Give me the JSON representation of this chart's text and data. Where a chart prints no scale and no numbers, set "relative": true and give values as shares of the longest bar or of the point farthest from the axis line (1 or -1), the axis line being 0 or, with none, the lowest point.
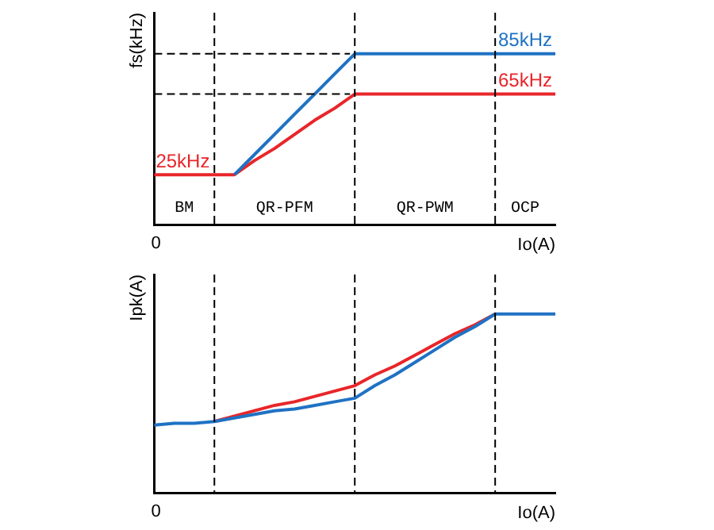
{
  "chart_data": [
    {
      "type": "line",
      "ylabel": "fs(kHz)",
      "xlabel": "Io(A)",
      "legend": false,
      "grid": "x",
      "categories": [
        null,
        null,
        null,
        null,
        null,
        null,
        null,
        null,
        null,
        null,
        null,
        null,
        null,
        null,
        null,
        null,
        null,
        null,
        null,
        null,
        null
      ],
      "series": [
        {
          "color": "#1f72c4",
          "values": [
            null,
            null,
            null,
            null,
            25,
            35,
            45,
            55,
            65,
            75,
            85,
            85,
            85,
            85,
            85,
            85,
            85,
            85,
            85,
            85,
            85
          ],
          "value_labels": [
            null,
            null,
            null,
            null,
            null,
            null,
            null,
            null,
            null,
            null,
            null,
            null,
            null,
            null,
            null,
            null,
            null,
            null,
            null,
            null,
            "85kHz"
          ]
        },
        {
          "color": "#e8262a",
          "values": [
            25,
            25,
            25,
            25,
            25,
            32,
            38,
            45,
            52,
            58,
            65,
            65,
            65,
            65,
            65,
            65,
            65,
            65,
            65,
            65,
            65
          ],
          "value_labels": [
            "25kHz",
            null,
            null,
            null,
            null,
            null,
            null,
            null,
            null,
            null,
            null,
            null,
            null,
            null,
            null,
            null,
            null,
            null,
            null,
            null,
            "65kHz"
          ]
        }
      ],
      "ref_lines": [
        {
          "axis": "y",
          "value": 85,
          "line_style": "dashed"
        },
        {
          "axis": "y",
          "value": 65,
          "line_style": "dashed"
        }
      ],
      "annotations": [
        "0",
        "BM",
        "QR-PFM",
        "QR-PWM",
        "OCP"
      ]
    },
    {
      "type": "line",
      "ylabel": "Ipk(A)",
      "xlabel": "Io(A)",
      "relative": true,
      "legend": false,
      "grid": "x",
      "categories": [
        null,
        null,
        null,
        null,
        null,
        null,
        null,
        null,
        null,
        null,
        null,
        null,
        null,
        null,
        null,
        null,
        null,
        null,
        null,
        null,
        null
      ],
      "series": [
        {
          "color": "#1f72c4",
          "values": [
            0.38,
            0.39,
            0.39,
            0.4,
            0.42,
            0.44,
            0.46,
            0.47,
            0.49,
            0.51,
            0.53,
            0.6,
            0.66,
            0.73,
            0.8,
            0.87,
            0.93,
            1,
            1,
            1,
            1
          ]
        },
        {
          "color": "#e8262a",
          "values": [
            null,
            null,
            null,
            0.4,
            0.43,
            0.46,
            0.49,
            0.51,
            0.54,
            0.57,
            0.6,
            0.66,
            0.71,
            0.77,
            0.83,
            0.89,
            0.94,
            1,
            null,
            null,
            null
          ]
        }
      ],
      "annotations": [
        "0"
      ]
    }
  ]
}
